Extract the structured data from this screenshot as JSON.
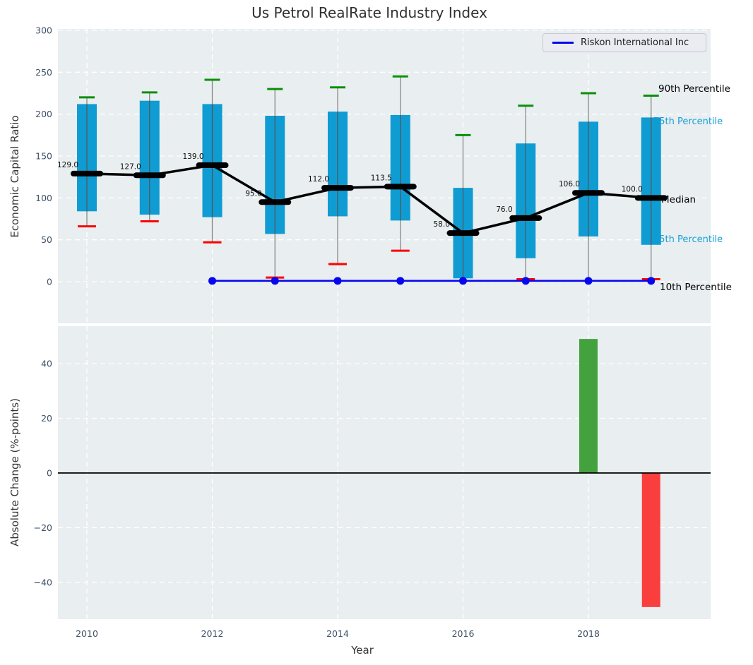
{
  "title": "Us Petrol RealRate Industry Index",
  "legend": {
    "label": "Riskon International Inc"
  },
  "axis_labels": {
    "top_y": "Economic Capital Ratio",
    "bottom_y": "Absolute Change (%-points)",
    "x": "Year"
  },
  "colors": {
    "plot_bg": "#e9eef0",
    "grid": "#ffffff",
    "box": "#0f9cd2",
    "whisker": "#888888",
    "cap_high": "#0b8f0b",
    "cap_low": "#ff0000",
    "median": "#000000",
    "company_line": "#0707ee",
    "bar_up": "#43a13e",
    "bar_down": "#fa3e3e",
    "annotation_cyan": "#169fd6",
    "annotation_black": "#000000",
    "tick": "#3d5066",
    "zero_line": "#000000"
  },
  "chart_data": [
    {
      "type": "box",
      "title": "Us Petrol RealRate Industry Index",
      "xlabel": "Year",
      "ylabel": "Economic Capital Ratio",
      "ylim": [
        -50,
        302
      ],
      "yticks": [
        0,
        50,
        100,
        150,
        200,
        250,
        300
      ],
      "xticks": [
        2010,
        2012,
        2014,
        2016,
        2018
      ],
      "grid": true,
      "legend_entries": [
        "Riskon International Inc"
      ],
      "legend_position": "upper right",
      "years": [
        2010,
        2011,
        2012,
        2013,
        2014,
        2015,
        2016,
        2017,
        2018,
        2019
      ],
      "series": [
        {
          "name": "90th Percentile",
          "values": [
            220,
            226,
            241,
            230,
            232,
            245,
            175,
            210,
            225,
            222
          ]
        },
        {
          "name": "75th Percentile",
          "values": [
            212,
            216,
            212,
            198,
            203,
            199,
            112,
            165,
            191,
            196
          ]
        },
        {
          "name": "Median",
          "values": [
            129.0,
            127.0,
            139.0,
            95.0,
            112.0,
            113.5,
            58.0,
            76.0,
            106.0,
            100.0
          ]
        },
        {
          "name": "25th Percentile",
          "values": [
            84,
            80,
            77,
            57,
            78,
            73,
            4,
            28,
            54,
            44
          ]
        },
        {
          "name": "10th Percentile",
          "values": [
            66,
            72,
            47,
            5,
            21,
            37,
            2,
            3,
            1,
            3
          ]
        }
      ],
      "p10_cap_visible": [
        true,
        true,
        true,
        true,
        true,
        true,
        false,
        true,
        false,
        true
      ],
      "median_labels": [
        "129.0",
        "127.0",
        "139.0",
        "95.0",
        "112.0",
        "113.5",
        "58.0",
        "76.0",
        "106.0",
        "100.0"
      ],
      "company_line": {
        "name": "Riskon International Inc",
        "years": [
          2012,
          2013,
          2014,
          2015,
          2016,
          2017,
          2018,
          2019
        ],
        "values": [
          1,
          1,
          1,
          1,
          1,
          1,
          1,
          1
        ]
      },
      "annotations": [
        {
          "text": "90th Percentile",
          "style": "black"
        },
        {
          "text": "75th Percentile",
          "style": "cyan"
        },
        {
          "text": "Median",
          "style": "black"
        },
        {
          "text": "25th Percentile",
          "style": "cyan"
        },
        {
          "text": "10th Percentile",
          "style": "black"
        }
      ]
    },
    {
      "type": "bar",
      "xlabel": "Year",
      "ylabel": "Absolute Change (%-points)",
      "ylim": [
        -54,
        54
      ],
      "yticks": [
        -40,
        -20,
        0,
        20,
        40
      ],
      "xticks": [
        2010,
        2012,
        2014,
        2016,
        2018
      ],
      "grid": true,
      "bars": [
        {
          "year": 2018,
          "value": 49,
          "direction": "up"
        },
        {
          "year": 2019,
          "value": -49,
          "direction": "down"
        }
      ]
    }
  ]
}
